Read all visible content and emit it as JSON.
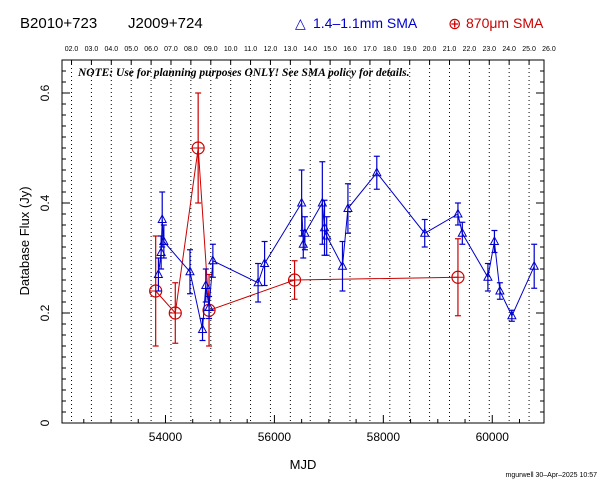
{
  "chart_data": {
    "type": "scatter",
    "source_names": [
      "B2010+723",
      "J2009+724"
    ],
    "legend": [
      {
        "symbol": "△",
        "label": "1.4–1.1mm SMA",
        "color": "#0000cc"
      },
      {
        "symbol": "⊕",
        "label": "870μm SMA",
        "color": "#cc0000"
      }
    ],
    "note": "NOTE: Use for planning purposes ONLY!  See SMA policy for details.",
    "xlabel": "MJD",
    "ylabel": "Database Flux (Jy)",
    "xlim": [
      52100,
      60950
    ],
    "ylim": [
      0,
      0.66
    ],
    "x_ticks": [
      54000,
      56000,
      58000,
      60000
    ],
    "x_tick_labels": [
      "54000",
      "56000",
      "58000",
      "60000"
    ],
    "y_ticks": [
      0,
      0.2,
      0.4,
      0.6
    ],
    "y_tick_labels": [
      "0",
      "0.2",
      "0.4",
      "0.6"
    ],
    "year_ticks": [
      {
        "label": "02.0",
        "mjd": 52275
      },
      {
        "label": "03.0",
        "mjd": 52640
      },
      {
        "label": "04.0",
        "mjd": 53005
      },
      {
        "label": "05.0",
        "mjd": 53371
      },
      {
        "label": "06.0",
        "mjd": 53736
      },
      {
        "label": "07.0",
        "mjd": 54101
      },
      {
        "label": "08.0",
        "mjd": 54466
      },
      {
        "label": "09.0",
        "mjd": 54832
      },
      {
        "label": "10.0",
        "mjd": 55197
      },
      {
        "label": "11.0",
        "mjd": 55562
      },
      {
        "label": "12.0",
        "mjd": 55927
      },
      {
        "label": "13.0",
        "mjd": 56293
      },
      {
        "label": "14.0",
        "mjd": 56658
      },
      {
        "label": "15.0",
        "mjd": 57023
      },
      {
        "label": "16.0",
        "mjd": 57388
      },
      {
        "label": "17.0",
        "mjd": 57754
      },
      {
        "label": "18.0",
        "mjd": 58119
      },
      {
        "label": "19.0",
        "mjd": 58484
      },
      {
        "label": "20.0",
        "mjd": 58849
      },
      {
        "label": "21.0",
        "mjd": 59215
      },
      {
        "label": "22.0",
        "mjd": 59580
      },
      {
        "label": "23.0",
        "mjd": 59945
      },
      {
        "label": "24.0",
        "mjd": 60310
      },
      {
        "label": "25.0",
        "mjd": 60676
      },
      {
        "label": "26.0",
        "mjd": 61041
      }
    ],
    "series": [
      {
        "name": "1.4–1.1mm SMA",
        "color": "#0000cc",
        "marker": "triangle",
        "points": [
          {
            "x": 53870,
            "y": 0.27,
            "err": 0.03
          },
          {
            "x": 53920,
            "y": 0.31,
            "err": 0.03
          },
          {
            "x": 53940,
            "y": 0.37,
            "err": 0.05
          },
          {
            "x": 53970,
            "y": 0.33,
            "err": 0.03
          },
          {
            "x": 54450,
            "y": 0.275,
            "err": 0.04
          },
          {
            "x": 54680,
            "y": 0.17,
            "err": 0.02
          },
          {
            "x": 54740,
            "y": 0.25,
            "err": 0.03
          },
          {
            "x": 54800,
            "y": 0.21,
            "err": 0.02
          },
          {
            "x": 54870,
            "y": 0.295,
            "err": 0.03
          },
          {
            "x": 55700,
            "y": 0.255,
            "err": 0.035
          },
          {
            "x": 55820,
            "y": 0.29,
            "err": 0.04
          },
          {
            "x": 56500,
            "y": 0.4,
            "err": 0.06
          },
          {
            "x": 56530,
            "y": 0.325,
            "err": 0.025
          },
          {
            "x": 56560,
            "y": 0.345,
            "err": 0.03
          },
          {
            "x": 56880,
            "y": 0.4,
            "err": 0.075
          },
          {
            "x": 56920,
            "y": 0.355,
            "err": 0.05
          },
          {
            "x": 56960,
            "y": 0.34,
            "err": 0.035
          },
          {
            "x": 57250,
            "y": 0.285,
            "err": 0.045
          },
          {
            "x": 57350,
            "y": 0.39,
            "err": 0.045
          },
          {
            "x": 57880,
            "y": 0.455,
            "err": 0.03
          },
          {
            "x": 58760,
            "y": 0.345,
            "err": 0.025
          },
          {
            "x": 59370,
            "y": 0.38,
            "err": 0.02
          },
          {
            "x": 59450,
            "y": 0.345,
            "err": 0.02
          },
          {
            "x": 59920,
            "y": 0.265,
            "err": 0.025
          },
          {
            "x": 60040,
            "y": 0.33,
            "err": 0.02
          },
          {
            "x": 60140,
            "y": 0.24,
            "err": 0.015
          },
          {
            "x": 60360,
            "y": 0.195,
            "err": 0.01
          },
          {
            "x": 60770,
            "y": 0.285,
            "err": 0.04
          }
        ]
      },
      {
        "name": "870μm SMA",
        "color": "#cc0000",
        "marker": "circle-plus",
        "points": [
          {
            "x": 53820,
            "y": 0.24,
            "err": 0.1
          },
          {
            "x": 54180,
            "y": 0.2,
            "err": 0.055
          },
          {
            "x": 54600,
            "y": 0.5,
            "err": 0.1
          },
          {
            "x": 54800,
            "y": 0.205,
            "err": 0.065
          },
          {
            "x": 56370,
            "y": 0.26,
            "err": 0.035
          },
          {
            "x": 59370,
            "y": 0.265,
            "err": 0.07
          }
        ]
      }
    ]
  },
  "footer": {
    "credit": "mgurwell 30–Apr–2025 10:57"
  }
}
